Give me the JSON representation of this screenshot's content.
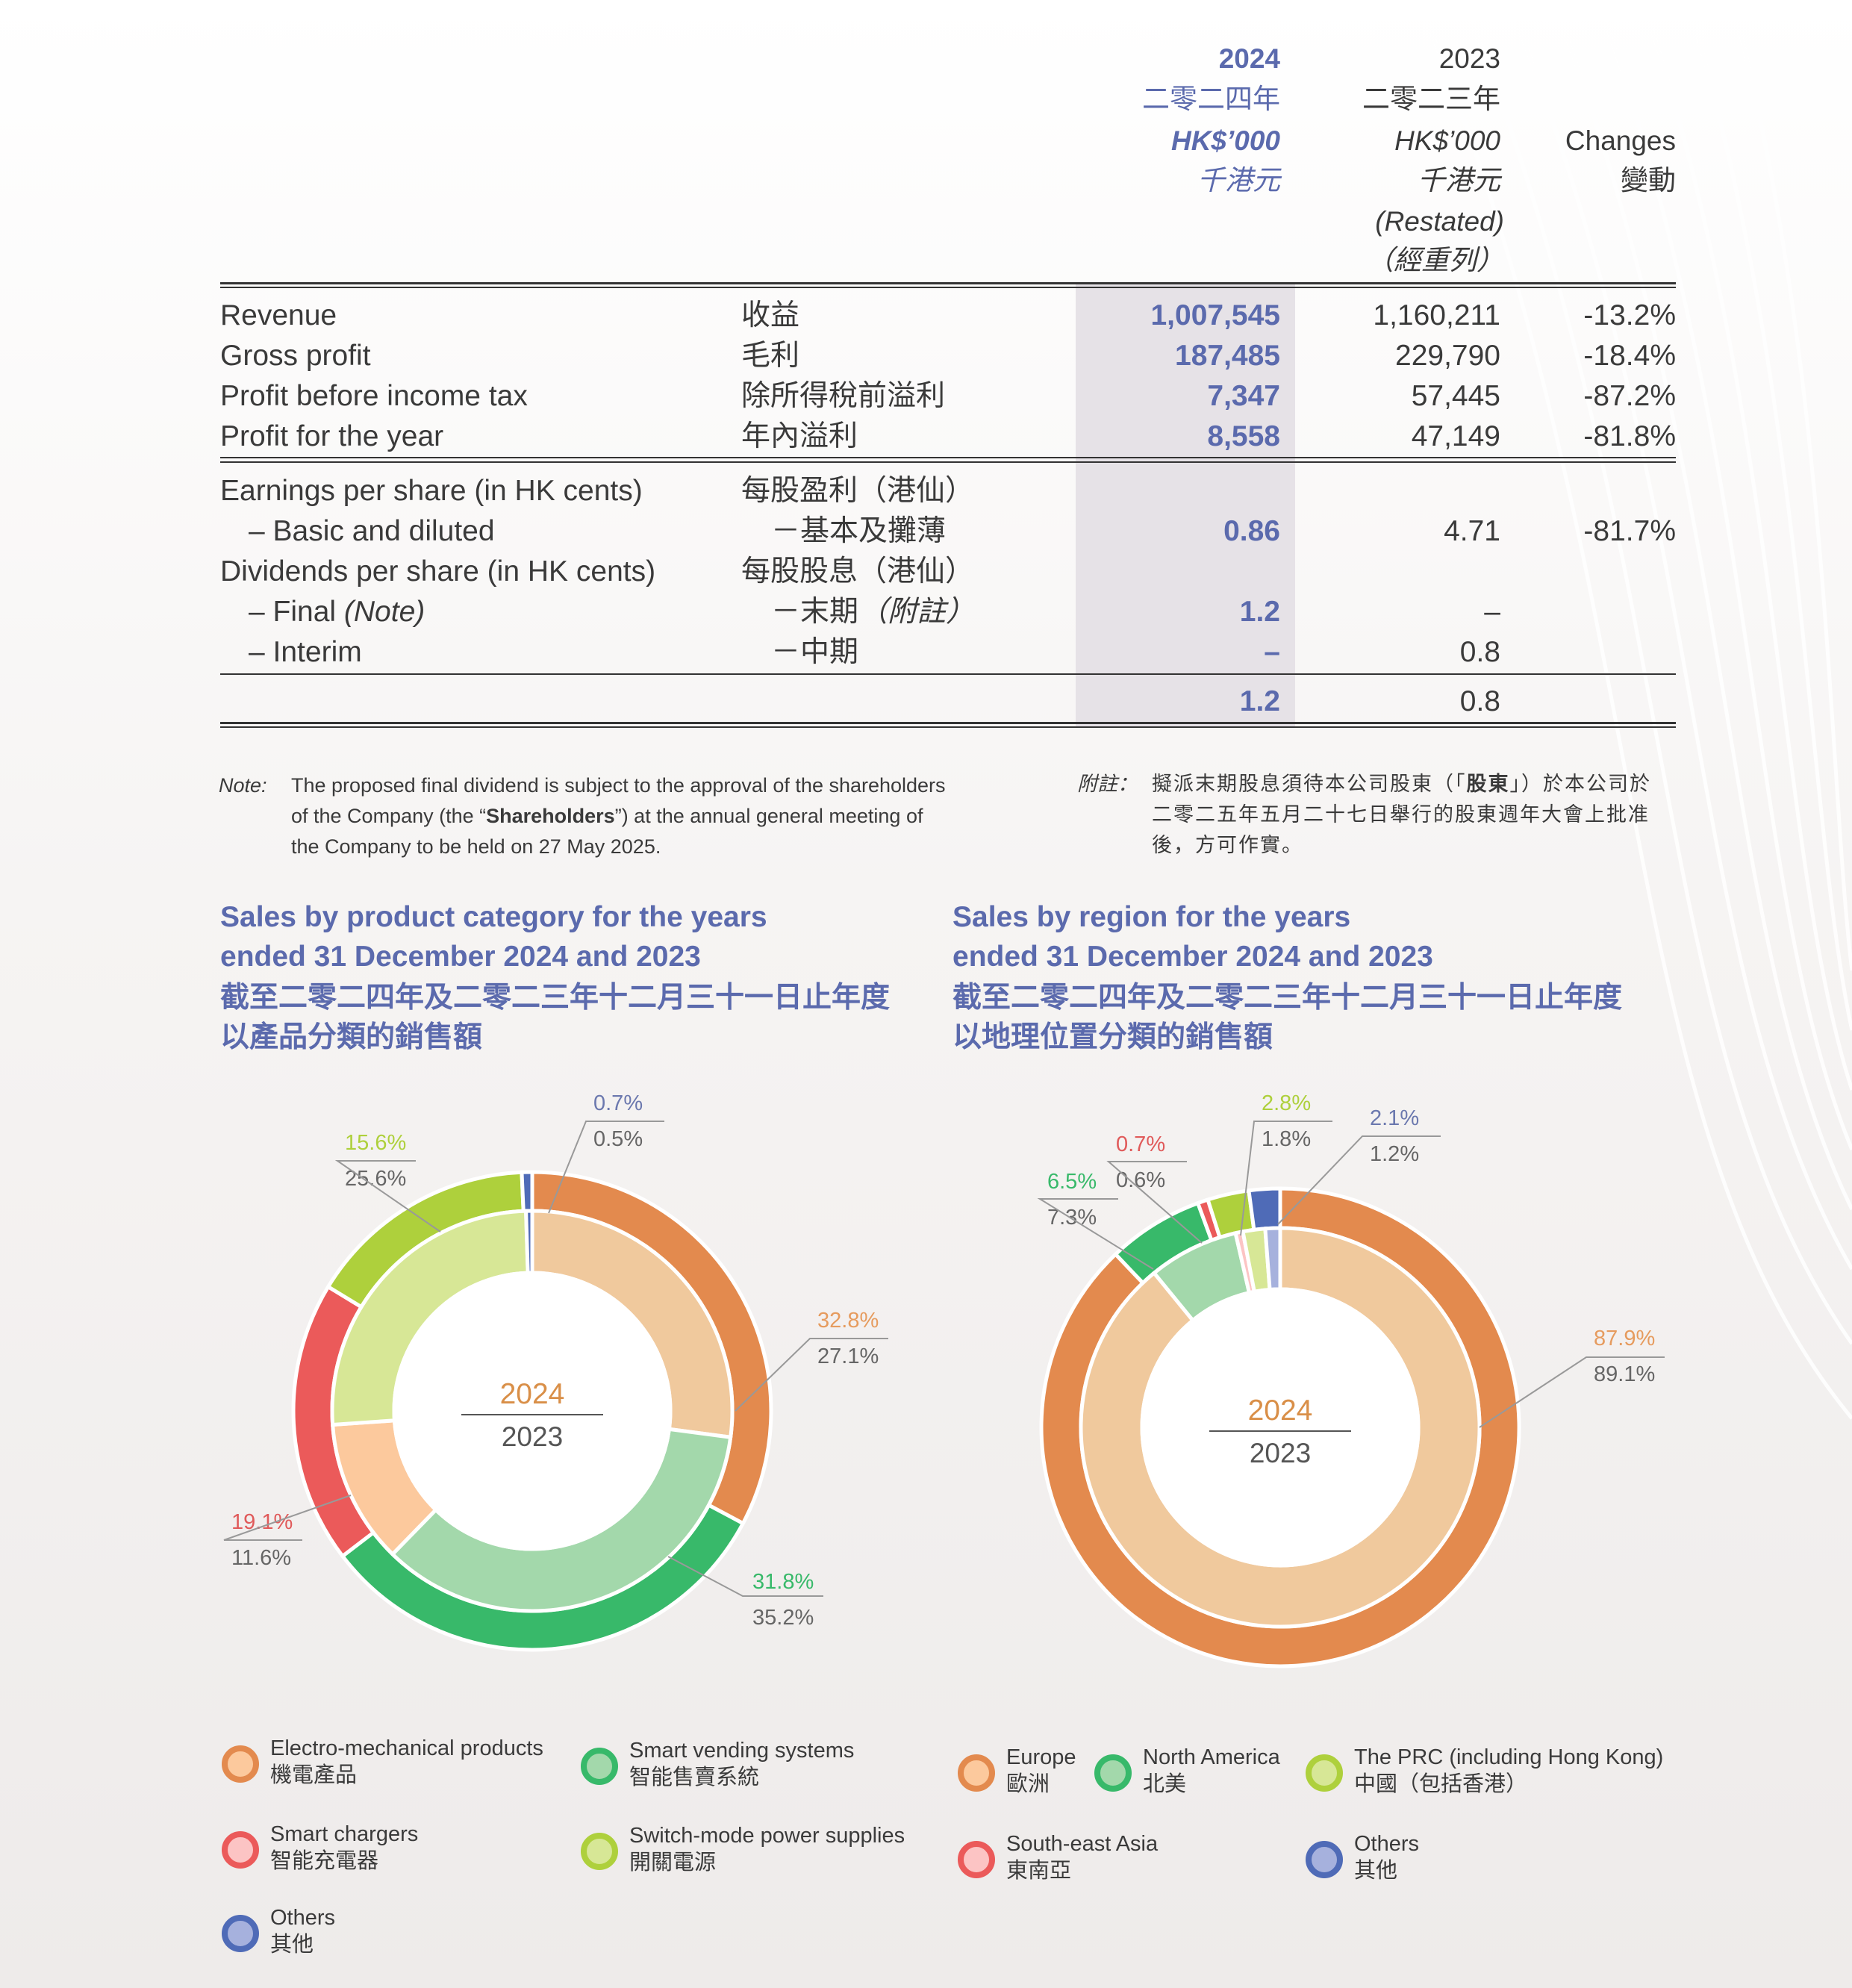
{
  "header": {
    "col2024": {
      "year": "2024",
      "cn": "二零二四年",
      "unit": "HK$’000",
      "unit_cn": "千港元"
    },
    "col2023": {
      "year": "2023",
      "cn": "二零二三年",
      "unit": "HK$’000",
      "unit_cn": "千港元",
      "restated": "(Restated)",
      "restated_cn": "（經重列）"
    },
    "changes": {
      "en": "Changes",
      "cn": "變動"
    }
  },
  "rows": [
    {
      "en": "Revenue",
      "cn": "收益",
      "v2024": "1,007,545",
      "v2023": "1,160,211",
      "chg": "-13.2%"
    },
    {
      "en": "Gross profit",
      "cn": "毛利",
      "v2024": "187,485",
      "v2023": "229,790",
      "chg": "-18.4%"
    },
    {
      "en": "Profit before income tax",
      "cn": "除所得稅前溢利",
      "v2024": "7,347",
      "v2023": "57,445",
      "chg": "-87.2%"
    },
    {
      "en": "Profit for the year",
      "cn": "年內溢利",
      "v2024": "8,558",
      "v2023": "47,149",
      "chg": "-81.8%"
    }
  ],
  "eps": {
    "title_en": "Earnings per share (in HK cents)",
    "title_cn": "每股盈利（港仙）",
    "basic_en": "– Basic and diluted",
    "basic_cn": "－基本及攤薄",
    "v2024": "0.86",
    "v2023": "4.71",
    "chg": "-81.7%"
  },
  "dps": {
    "title_en": "Dividends per share (in HK cents)",
    "title_cn": "每股股息（港仙）",
    "final_en": "– Final ",
    "final_note": "(Note)",
    "final_cn": "－末期",
    "final_cn_note": "（附註）",
    "final2024": "1.2",
    "final2023": "–",
    "interim_en": "– Interim",
    "interim_cn": "－中期",
    "interim2024": "–",
    "interim2023": "0.8",
    "total2024": "1.2",
    "total2023": "0.8"
  },
  "note": {
    "label": "Note:",
    "line1": "The proposed final dividend is subject to the approval of the shareholders",
    "line2a": "of the Company (the “",
    "line2b": "Shareholders",
    "line2c": "”) at the annual general meeting of",
    "line3": "the Company to be held on 27 May 2025.",
    "cn_label": "附註：",
    "cn_line1a": "擬派末期股息須待本公司股東（「",
    "cn_line1b": "股東",
    "cn_line1c": "」）於本公司於",
    "cn_line2": "二零二五年五月二十七日舉行的股東週年大會上批准",
    "cn_line3": "後，方可作實。"
  },
  "chart_data": [
    {
      "type": "pie",
      "title": "Sales by product category for the years ended 31 December 2024 and 2023",
      "title_lines": [
        "Sales by product category for the years",
        "ended 31 December 2024 and 2023"
      ],
      "title_cn_lines": [
        "截至二零二四年及二零二三年十二月三十一日止年度",
        "以產品分類的銷售額"
      ],
      "center": {
        "outer": "2024",
        "inner": "2023"
      },
      "categories": [
        "Electro-mechanical products",
        "Smart vending systems",
        "Smart chargers",
        "Switch-mode power supplies",
        "Others"
      ],
      "categories_cn": [
        "機電產品",
        "智能售賣系統",
        "智能充電器",
        "開關電源",
        "其他"
      ],
      "series": [
        {
          "name": "2024",
          "values": [
            32.8,
            31.8,
            19.1,
            15.6,
            0.7
          ],
          "labels": [
            "32.8%",
            "31.8%",
            "19.1%",
            "15.6%",
            "0.7%"
          ]
        },
        {
          "name": "2023",
          "values": [
            27.1,
            35.2,
            11.6,
            25.6,
            0.5
          ],
          "labels": [
            "27.1%",
            "35.2%",
            "11.6%",
            "25.6%",
            "0.5%"
          ]
        }
      ],
      "colors_2024": [
        "#e38a4e",
        "#38b96a",
        "#eb5a5a",
        "#aed03c",
        "#4f6bb7"
      ],
      "colors_2023": [
        "#f0c99d",
        "#a3d8ab",
        "#fcc99d",
        "#d7e796",
        "#4f6bb7"
      ]
    },
    {
      "type": "pie",
      "title": "Sales by region for the years ended 31 December 2024 and 2023",
      "title_lines": [
        "Sales by region for the years",
        "ended 31 December 2024 and 2023"
      ],
      "title_cn_lines": [
        "截至二零二四年及二零二三年十二月三十一日止年度",
        "以地理位置分類的銷售額"
      ],
      "center": {
        "outer": "2024",
        "inner": "2023"
      },
      "categories": [
        "Europe",
        "North America",
        "South-east Asia",
        "The PRC (including Hong Kong)",
        "Others"
      ],
      "categories_cn": [
        "歐洲",
        "北美",
        "東南亞",
        "中國（包括香港）",
        "其他"
      ],
      "series": [
        {
          "name": "2024",
          "values": [
            87.9,
            6.5,
            0.7,
            2.8,
            2.1
          ],
          "labels": [
            "87.9%",
            "6.5%",
            "0.7%",
            "2.8%",
            "2.1%"
          ]
        },
        {
          "name": "2023",
          "values": [
            89.1,
            7.3,
            0.6,
            1.8,
            1.2
          ],
          "labels": [
            "89.1%",
            "7.3%",
            "0.6%",
            "1.8%",
            "1.2%"
          ]
        }
      ],
      "colors_2024": [
        "#e38a4e",
        "#38b96a",
        "#eb5a5a",
        "#aed03c",
        "#4f6bb7"
      ],
      "colors_2023": [
        "#f0c99d",
        "#a3d8ab",
        "#fcc4c4",
        "#d7e796",
        "#a6b1dd"
      ]
    }
  ],
  "legend_left": [
    {
      "en": "Electro-mechanical products",
      "cn": "機電產品",
      "color": "#e38a4e",
      "fill": "#fcc99d"
    },
    {
      "en": "Smart vending systems",
      "cn": "智能售賣系統",
      "color": "#38b96a",
      "fill": "#a3d8ab"
    },
    {
      "en": "Smart chargers",
      "cn": "智能充電器",
      "color": "#eb5a5a",
      "fill": "#fcc4c4"
    },
    {
      "en": "Switch-mode power supplies",
      "cn": "開關電源",
      "color": "#aed03c",
      "fill": "#d7e796"
    },
    {
      "en": "Others",
      "cn": "其他",
      "color": "#4f6bb7",
      "fill": "#a6b1dd"
    }
  ],
  "legend_right": [
    {
      "en": "Europe",
      "cn": "歐洲",
      "color": "#e38a4e",
      "fill": "#fcc99d"
    },
    {
      "en": "North America",
      "cn": "北美",
      "color": "#38b96a",
      "fill": "#a3d8ab"
    },
    {
      "en": "The PRC (including Hong Kong)",
      "cn": "中國（包括香港）",
      "color": "#aed03c",
      "fill": "#d7e796"
    },
    {
      "en": "South-east Asia",
      "cn": "東南亞",
      "color": "#eb5a5a",
      "fill": "#fcc4c4"
    },
    {
      "en": "Others",
      "cn": "其他",
      "color": "#4f6bb7",
      "fill": "#a6b1dd"
    }
  ]
}
